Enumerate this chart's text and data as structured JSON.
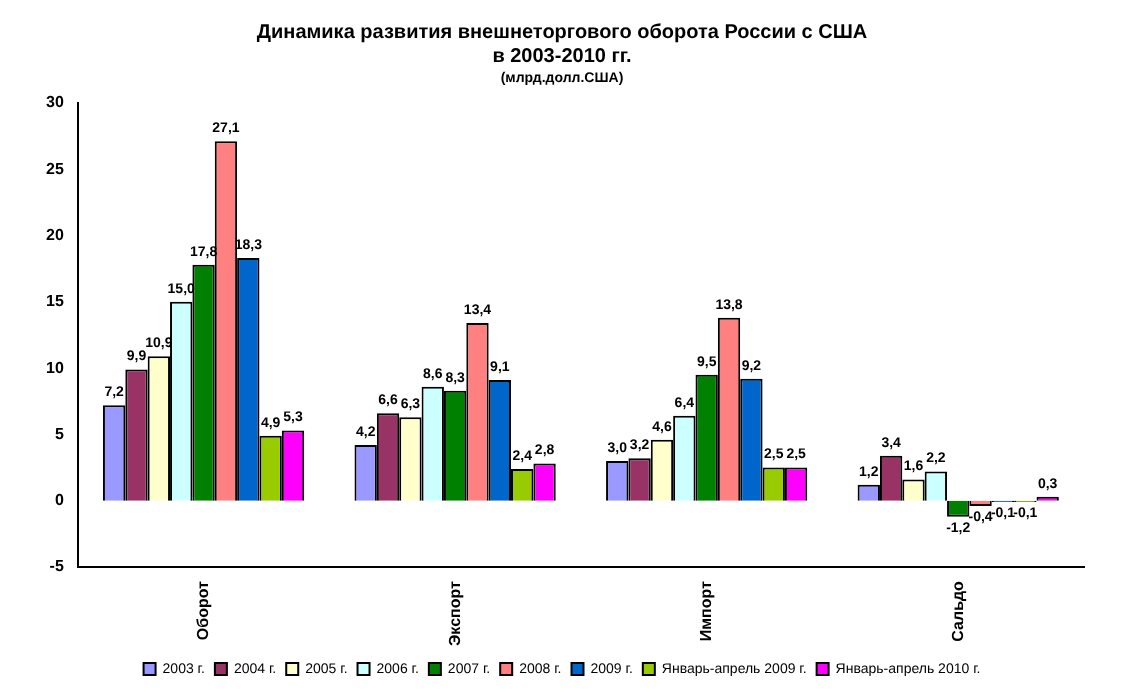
{
  "chart_data": {
    "type": "bar",
    "title": "Динамика развития внешнеторгового оборота России с США\nв 2003-2010 гг.",
    "subtitle": "(млрд.долл.США)",
    "categories": [
      "Оборот",
      "Экспорт",
      "Импорт",
      "Сальдо"
    ],
    "series": [
      {
        "name": "2003 г.",
        "color": "#9999ff",
        "values": [
          7.2,
          4.2,
          3.0,
          1.2
        ],
        "value_labels": [
          "7,2",
          "4,2",
          "3,0",
          "1,2"
        ]
      },
      {
        "name": "2004 г.",
        "color": "#993366",
        "values": [
          9.9,
          6.6,
          3.2,
          3.4
        ],
        "value_labels": [
          "9,9",
          "6,6",
          "3,2",
          "3,4"
        ]
      },
      {
        "name": "2005 г.",
        "color": "#ffffcc",
        "values": [
          10.9,
          6.3,
          4.6,
          1.6
        ],
        "value_labels": [
          "10,9",
          "6,3",
          "4,6",
          "1,6"
        ]
      },
      {
        "name": "2006 г.",
        "color": "#ccffff",
        "values": [
          15.0,
          8.6,
          6.4,
          2.2
        ],
        "value_labels": [
          "15,0",
          "8,6",
          "6,4",
          "2,2"
        ]
      },
      {
        "name": "2007 г.",
        "color": "#008000",
        "values": [
          17.8,
          8.3,
          9.5,
          -1.2
        ],
        "value_labels": [
          "17,8",
          "8,3",
          "9,5",
          "-1,2"
        ]
      },
      {
        "name": "2008 г.",
        "color": "#ff8080",
        "values": [
          27.1,
          13.4,
          13.8,
          -0.4
        ],
        "value_labels": [
          "27,1",
          "13,4",
          "13,8",
          "-0,4"
        ]
      },
      {
        "name": "2009 г.",
        "color": "#0066cc",
        "values": [
          18.3,
          9.1,
          9.2,
          -0.1
        ],
        "value_labels": [
          "18,3",
          "9,1",
          "9,2",
          "-0,1"
        ]
      },
      {
        "name": "Январь-апрель 2009 г.",
        "color": "#99cc00",
        "values": [
          4.9,
          2.4,
          2.5,
          -0.1
        ],
        "value_labels": [
          "4,9",
          "2,4",
          "2,5",
          "-0,1"
        ]
      },
      {
        "name": "Январь-апрель 2010 г.",
        "color": "#ff00ff",
        "values": [
          5.3,
          2.8,
          2.5,
          0.3
        ],
        "value_labels": [
          "5,3",
          "2,8",
          "2,5",
          "0,3"
        ]
      }
    ],
    "ylim": [
      -5,
      30
    ],
    "yticks": [
      -5,
      0,
      5,
      10,
      15,
      20,
      25,
      30
    ],
    "grid": false,
    "legend": "bottom"
  }
}
